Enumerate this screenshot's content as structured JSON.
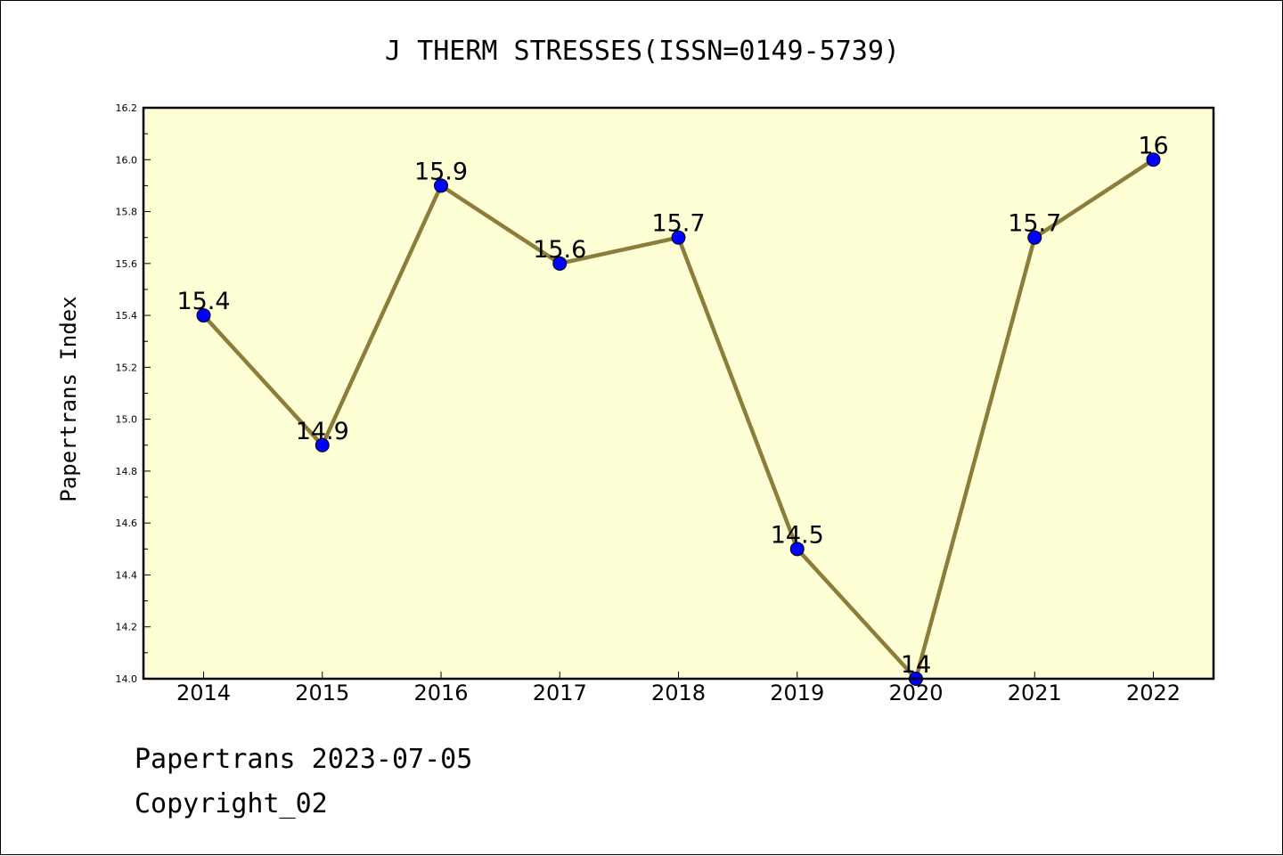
{
  "chart_data": {
    "type": "line",
    "title": "J THERM STRESSES(ISSN=0149-5739)",
    "xlabel": "",
    "ylabel": "Papertrans Index",
    "categories": [
      "2014",
      "2015",
      "2016",
      "2017",
      "2018",
      "2019",
      "2020",
      "2021",
      "2022"
    ],
    "series": [
      {
        "values": [
          15.4,
          14.9,
          15.9,
          15.6,
          15.7,
          14.5,
          14.0,
          15.7,
          16.0
        ],
        "point_labels": [
          "15.4",
          "14.9",
          "15.9",
          "15.6",
          "15.7",
          "14.5",
          "14",
          "15.7",
          "16"
        ],
        "line_color": "#8B7D3A",
        "marker_color": "#0000FF"
      }
    ],
    "ylim": [
      14.0,
      16.2
    ],
    "yticks": [
      "14.0",
      "14.2",
      "14.4",
      "14.6",
      "14.8",
      "15.0",
      "15.2",
      "15.4",
      "15.6",
      "15.8",
      "16.0",
      "16.2"
    ],
    "plot_background": "#FFFFD5",
    "grid": false,
    "legend": "none"
  },
  "footer": {
    "line1": "Papertrans 2023-07-05",
    "line2": "Copyright_02"
  }
}
